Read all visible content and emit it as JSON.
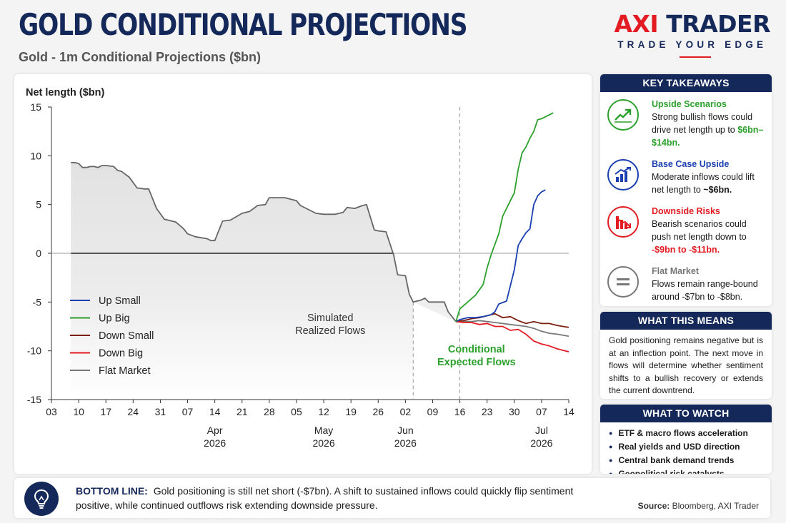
{
  "header": {
    "title": "GOLD CONDITIONAL PROJECTIONS",
    "subtitle": "Gold - 1m Conditional Projections ($bn)"
  },
  "logo": {
    "brand_red": "AXI",
    "brand_blue": " TRADER",
    "tagline": "TRADE YOUR EDGE"
  },
  "colors": {
    "navy": "#14285a",
    "red": "#e31b23",
    "green": "#2ca02c",
    "blue": "#1a3fb0",
    "brown": "#7a1f0e",
    "gray": "#777777"
  },
  "chart_data": {
    "type": "line",
    "ylabel": "Net length ($bn)",
    "ylim": [
      -15,
      15
    ],
    "yticks": [
      15,
      10,
      5,
      0,
      -5,
      -10,
      -15
    ],
    "xlim": [
      "2026-03-03",
      "2026-07-14"
    ],
    "xticks": [
      "03",
      "10",
      "17",
      "24",
      "31",
      "07",
      "14",
      "21",
      "28",
      "05",
      "12",
      "19",
      "26",
      "02",
      "09",
      "16",
      "23",
      "30",
      "07",
      "14"
    ],
    "xtick_dates": [
      "2026-03-03",
      "2026-03-10",
      "2026-03-17",
      "2026-03-24",
      "2026-03-31",
      "2026-04-07",
      "2026-04-14",
      "2026-04-21",
      "2026-04-28",
      "2026-05-05",
      "2026-05-12",
      "2026-05-19",
      "2026-05-26",
      "2026-06-02",
      "2026-06-09",
      "2026-06-16",
      "2026-06-23",
      "2026-06-30",
      "2026-07-07",
      "2026-07-14"
    ],
    "months": [
      {
        "month": "Apr",
        "year": "2026",
        "date": "2026-04-14"
      },
      {
        "month": "May",
        "year": "2026",
        "date": "2026-05-12"
      },
      {
        "month": "Jun",
        "year": "2026",
        "date": "2026-06-02"
      },
      {
        "month": "Jul",
        "year": "2026",
        "date": "2026-07-07"
      }
    ],
    "divider_dates": [
      "2026-06-04",
      "2026-06-16"
    ],
    "annotations": [
      {
        "text": "Simulated",
        "text2": "Realized Flows",
        "date": "2026-05-17",
        "y": -7
      },
      {
        "text": "Conditional",
        "text2": "Expected Flows",
        "date": "2026-06-21",
        "y": -10.5
      }
    ],
    "realized": [
      [
        "2026-03-08",
        9.3
      ],
      [
        "2026-03-09",
        9.3
      ],
      [
        "2026-03-10",
        9.2
      ],
      [
        "2026-03-11",
        8.8
      ],
      [
        "2026-03-12",
        8.8
      ],
      [
        "2026-03-13",
        8.9
      ],
      [
        "2026-03-14",
        8.9
      ],
      [
        "2026-03-15",
        8.8
      ],
      [
        "2026-03-16",
        9.0
      ],
      [
        "2026-03-17",
        9.0
      ],
      [
        "2026-03-19",
        8.9
      ],
      [
        "2026-03-20",
        8.5
      ],
      [
        "2026-03-21",
        8.4
      ],
      [
        "2026-03-23",
        7.8
      ],
      [
        "2026-03-25",
        6.7
      ],
      [
        "2026-03-27",
        6.6
      ],
      [
        "2026-03-28",
        6.6
      ],
      [
        "2026-03-30",
        4.6
      ],
      [
        "2026-04-01",
        3.5
      ],
      [
        "2026-04-03",
        3.3
      ],
      [
        "2026-04-04",
        3.2
      ],
      [
        "2026-04-06",
        2.5
      ],
      [
        "2026-04-07",
        2.0
      ],
      [
        "2026-04-09",
        1.7
      ],
      [
        "2026-04-12",
        1.5
      ],
      [
        "2026-04-13",
        1.3
      ],
      [
        "2026-04-14",
        1.3
      ],
      [
        "2026-04-16",
        3.3
      ],
      [
        "2026-04-18",
        3.4
      ],
      [
        "2026-04-21",
        4.1
      ],
      [
        "2026-04-23",
        4.3
      ],
      [
        "2026-04-25",
        4.9
      ],
      [
        "2026-04-27",
        5.0
      ],
      [
        "2026-04-28",
        5.7
      ],
      [
        "2026-05-02",
        5.7
      ],
      [
        "2026-05-03",
        5.6
      ],
      [
        "2026-05-05",
        5.4
      ],
      [
        "2026-05-06",
        4.9
      ],
      [
        "2026-05-08",
        4.5
      ],
      [
        "2026-05-10",
        4.1
      ],
      [
        "2026-05-12",
        4.0
      ],
      [
        "2026-05-15",
        4.0
      ],
      [
        "2026-05-17",
        4.2
      ],
      [
        "2026-05-18",
        4.7
      ],
      [
        "2026-05-20",
        4.6
      ],
      [
        "2026-05-22",
        4.9
      ],
      [
        "2026-05-23",
        5.0
      ],
      [
        "2026-05-25",
        2.4
      ],
      [
        "2026-05-26",
        2.3
      ],
      [
        "2026-05-28",
        2.2
      ],
      [
        "2026-05-30",
        -0.2
      ],
      [
        "2026-05-31",
        -2.2
      ],
      [
        "2026-06-02",
        -2.3
      ],
      [
        "2026-06-03",
        -4.2
      ],
      [
        "2026-06-04",
        -5.0
      ],
      [
        "2026-06-06",
        -4.8
      ],
      [
        "2026-06-07",
        -4.6
      ],
      [
        "2026-06-08",
        -5.0
      ],
      [
        "2026-06-11",
        -5.0
      ],
      [
        "2026-06-12",
        -5.0
      ],
      [
        "2026-06-13",
        -6.0
      ],
      [
        "2026-06-15",
        -7.0
      ]
    ],
    "series": [
      {
        "name": "Up Small",
        "color": "#1a3fb0",
        "points": [
          [
            "2026-06-15",
            -7.0
          ],
          [
            "2026-06-16",
            -6.8
          ],
          [
            "2026-06-18",
            -6.6
          ],
          [
            "2026-06-20",
            -6.6
          ],
          [
            "2026-06-22",
            -6.5
          ],
          [
            "2026-06-24",
            -6.3
          ],
          [
            "2026-06-25",
            -6.0
          ],
          [
            "2026-06-26",
            -5.2
          ],
          [
            "2026-06-28",
            -4.9
          ],
          [
            "2026-06-29",
            -3.3
          ],
          [
            "2026-06-30",
            -1.7
          ],
          [
            "2026-07-01",
            0.8
          ],
          [
            "2026-07-02",
            1.5
          ],
          [
            "2026-07-03",
            2.1
          ],
          [
            "2026-07-04",
            2.5
          ],
          [
            "2026-07-05",
            5.0
          ],
          [
            "2026-07-06",
            5.9
          ],
          [
            "2026-07-07",
            6.3
          ],
          [
            "2026-07-08",
            6.5
          ]
        ]
      },
      {
        "name": "Up Big",
        "color": "#2ca02c",
        "points": [
          [
            "2026-06-15",
            -7.0
          ],
          [
            "2026-06-16",
            -5.7
          ],
          [
            "2026-06-18",
            -5.0
          ],
          [
            "2026-06-20",
            -4.3
          ],
          [
            "2026-06-22",
            -3.2
          ],
          [
            "2026-06-23",
            -1.5
          ],
          [
            "2026-06-24",
            -0.2
          ],
          [
            "2026-06-26",
            2.0
          ],
          [
            "2026-06-27",
            3.8
          ],
          [
            "2026-06-29",
            5.4
          ],
          [
            "2026-06-30",
            6.2
          ],
          [
            "2026-07-01",
            8.6
          ],
          [
            "2026-07-02",
            10.3
          ],
          [
            "2026-07-03",
            10.9
          ],
          [
            "2026-07-04",
            11.8
          ],
          [
            "2026-07-05",
            12.5
          ],
          [
            "2026-07-06",
            13.7
          ],
          [
            "2026-07-07",
            13.8
          ],
          [
            "2026-07-08",
            14.0
          ],
          [
            "2026-07-10",
            14.4
          ]
        ]
      },
      {
        "name": "Down Small",
        "color": "#7a1f0e",
        "points": [
          [
            "2026-06-15",
            -7.0
          ],
          [
            "2026-06-17",
            -6.9
          ],
          [
            "2026-06-19",
            -6.7
          ],
          [
            "2026-06-21",
            -6.6
          ],
          [
            "2026-06-23",
            -6.4
          ],
          [
            "2026-06-25",
            -6.2
          ],
          [
            "2026-06-27",
            -6.6
          ],
          [
            "2026-06-29",
            -6.5
          ],
          [
            "2026-07-01",
            -6.9
          ],
          [
            "2026-07-03",
            -7.2
          ],
          [
            "2026-07-05",
            -7.0
          ],
          [
            "2026-07-07",
            -7.2
          ],
          [
            "2026-07-09",
            -7.2
          ],
          [
            "2026-07-11",
            -7.4
          ],
          [
            "2026-07-14",
            -7.6
          ]
        ]
      },
      {
        "name": "Down Big",
        "color": "#e31b23",
        "points": [
          [
            "2026-06-15",
            -7.0
          ],
          [
            "2026-06-17",
            -7.1
          ],
          [
            "2026-06-19",
            -7.1
          ],
          [
            "2026-06-21",
            -7.3
          ],
          [
            "2026-06-23",
            -7.2
          ],
          [
            "2026-06-25",
            -7.5
          ],
          [
            "2026-06-27",
            -7.5
          ],
          [
            "2026-06-29",
            -7.9
          ],
          [
            "2026-07-01",
            -7.8
          ],
          [
            "2026-07-03",
            -8.3
          ],
          [
            "2026-07-05",
            -9.0
          ],
          [
            "2026-07-07",
            -9.3
          ],
          [
            "2026-07-09",
            -9.5
          ],
          [
            "2026-07-11",
            -9.8
          ],
          [
            "2026-07-14",
            -10.1
          ]
        ]
      },
      {
        "name": "Flat Market",
        "color": "#777777",
        "points": [
          [
            "2026-06-15",
            -7.0
          ],
          [
            "2026-06-17",
            -7.0
          ],
          [
            "2026-06-19",
            -7.0
          ],
          [
            "2026-06-21",
            -6.9
          ],
          [
            "2026-06-23",
            -7.0
          ],
          [
            "2026-06-25",
            -7.1
          ],
          [
            "2026-06-27",
            -7.2
          ],
          [
            "2026-06-29",
            -7.3
          ],
          [
            "2026-07-01",
            -7.4
          ],
          [
            "2026-07-03",
            -7.5
          ],
          [
            "2026-07-05",
            -7.7
          ],
          [
            "2026-07-07",
            -8.0
          ],
          [
            "2026-07-09",
            -8.2
          ],
          [
            "2026-07-11",
            -8.3
          ],
          [
            "2026-07-14",
            -8.5
          ]
        ]
      }
    ]
  },
  "takeaways": {
    "heading": "KEY TAKEAWAYS",
    "items": [
      {
        "title": "Upside Scenarios",
        "body": "Strong bullish flows could drive net length up to",
        "highlight": "$6bn–$14bn.",
        "color": "#2ca02c",
        "icon": "trend-up-icon"
      },
      {
        "title": "Base Case Upside",
        "body": "Moderate inflows could lift net length to",
        "highlight": "~$6bn.",
        "color": "#1a3fb0",
        "icon": "bar-chart-up-icon"
      },
      {
        "title": "Downside Risks",
        "body": "Bearish scenarios could push net length down to",
        "highlight": "-$9bn to -$11bn.",
        "color": "#e31b23",
        "icon": "bar-chart-down-icon"
      },
      {
        "title": "Flat Market",
        "body": "Flows remain range-bound around -$7bn to -$8bn.",
        "highlight": "",
        "color": "#777777",
        "icon": "equals-icon"
      }
    ]
  },
  "means": {
    "heading": "WHAT THIS MEANS",
    "text": "Gold positioning remains negative but is at an inflection point. The next move in flows will determine whether sentiment shifts to a bullish recovery or extends the current downtrend."
  },
  "watch": {
    "heading": "WHAT TO WATCH",
    "items": [
      "ETF & macro flows acceleration",
      "Real yields and USD direction",
      "Central bank demand trends",
      "Geopolitical risk catalysts"
    ]
  },
  "bottom": {
    "label": "BOTTOM LINE:",
    "text": "Gold positioning is still net short (-$7bn). A shift to sustained inflows could quickly flip sentiment positive, while continued outflows risk extending downside pressure.",
    "source_label": "Source:",
    "source_text": " Bloomberg, AXI Trader"
  }
}
